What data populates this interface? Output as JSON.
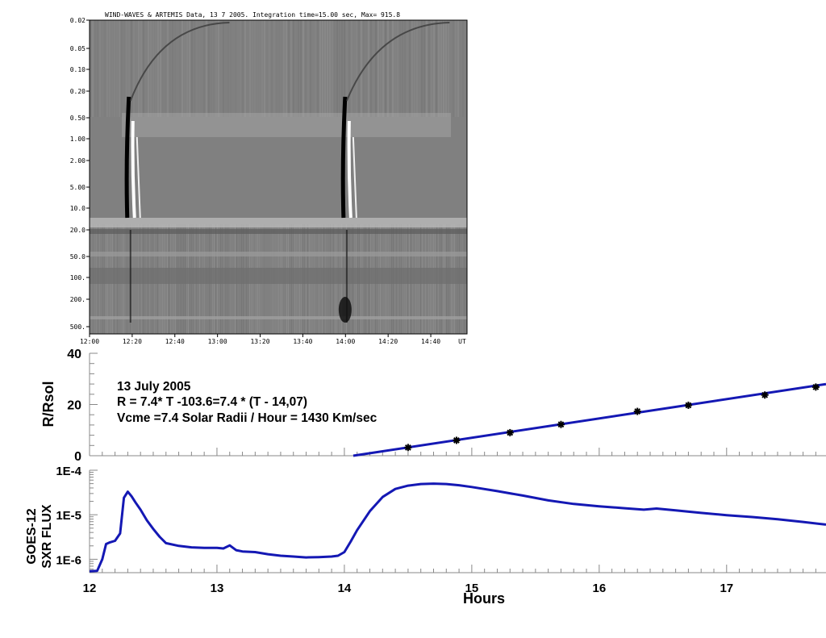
{
  "chart_data": [
    {
      "type": "heatmap",
      "title": "WIND-WAVES & ARTEMIS Data, 13  7 2005. Integration time=15.00 sec, Max= 915.8",
      "ytick_labels": [
        "0.02",
        "0.05",
        "0.10",
        "0.20",
        "0.50",
        "1.00",
        "2.00",
        "5.00",
        "10.0",
        "20.0",
        "50.0",
        "100.",
        "200.",
        "500."
      ],
      "xtick_labels": [
        "12:00",
        "12:20",
        "12:40",
        "13:00",
        "13:20",
        "13:40",
        "14:00",
        "14:20",
        "14:40",
        "UT"
      ],
      "x_range_hours": [
        12.0,
        14.95
      ],
      "bursts": [
        {
          "t_start": 12.32,
          "t_end": 12.4
        },
        {
          "t_start": 14.01,
          "t_end": 14.12
        }
      ],
      "colormap": "grayscale"
    },
    {
      "type": "scatter",
      "ylabel": "R/Rsol",
      "ylim": [
        0,
        40
      ],
      "yticks": [
        "0",
        "20",
        "40"
      ],
      "xlim": [
        12,
        17.78
      ],
      "annotations": [
        "13 July 2005",
        "R = 7.4* T -103.6=7.4 * (T - 14,07)",
        "Vcme =7.4 Solar Radii / Hour = 1430 Km/sec"
      ],
      "points": [
        {
          "x": 14.5,
          "y": 3.2
        },
        {
          "x": 14.88,
          "y": 6.0
        },
        {
          "x": 15.3,
          "y": 9.0
        },
        {
          "x": 15.7,
          "y": 12.2
        },
        {
          "x": 16.3,
          "y": 17.3
        },
        {
          "x": 16.7,
          "y": 19.7
        },
        {
          "x": 17.3,
          "y": 23.7
        },
        {
          "x": 17.7,
          "y": 26.8
        }
      ],
      "fit": {
        "slope": 7.4,
        "intercept": -103.6,
        "x_start": 14.07,
        "color": "#1418b4"
      }
    },
    {
      "type": "line",
      "ylabel": "GOES-12\nSXR FLUX",
      "ylabel_lines": [
        "GOES-12",
        "SXR FLUX"
      ],
      "yscale": "log",
      "ylim": [
        5e-07,
        0.0001
      ],
      "yticks": [
        "1E-4",
        "1E-5",
        "1E-6"
      ],
      "xlim": [
        12,
        17.78
      ],
      "xticks": [
        "12",
        "13",
        "14",
        "15",
        "16",
        "17"
      ],
      "xlabel": "Hours",
      "color": "#1418b4",
      "series": [
        {
          "x": [
            12.0,
            12.06,
            12.1,
            12.13,
            12.16,
            12.2,
            12.24,
            12.27,
            12.3,
            12.33,
            12.36,
            12.4,
            12.45,
            12.5,
            12.55,
            12.6,
            12.7,
            12.8,
            12.9,
            13.0,
            13.05,
            13.1,
            13.15,
            13.2,
            13.3,
            13.4,
            13.5,
            13.6,
            13.7,
            13.8,
            13.9,
            13.95,
            14.0,
            14.05,
            14.1,
            14.2,
            14.3,
            14.4,
            14.5,
            14.6,
            14.7,
            14.8,
            14.9,
            15.0,
            15.2,
            15.4,
            15.6,
            15.8,
            16.0,
            16.2,
            16.35,
            16.45,
            16.6,
            16.8,
            17.0,
            17.2,
            17.4,
            17.6,
            17.78
          ],
          "y": [
            5.4e-07,
            5.5e-07,
            1e-06,
            2.2e-06,
            2.4e-06,
            2.6e-06,
            3.8e-06,
            2.4e-05,
            3.3e-05,
            2.6e-05,
            1.9e-05,
            1.3e-05,
            7.5e-06,
            4.8e-06,
            3.2e-06,
            2.3e-06,
            2e-06,
            1.85e-06,
            1.8e-06,
            1.8e-06,
            1.75e-06,
            2.05e-06,
            1.6e-06,
            1.5e-06,
            1.45e-06,
            1.3e-06,
            1.2e-06,
            1.15e-06,
            1.1e-06,
            1.12e-06,
            1.15e-06,
            1.2e-06,
            1.45e-06,
            2.5e-06,
            4.5e-06,
            1.2e-05,
            2.5e-05,
            3.8e-05,
            4.5e-05,
            4.9e-05,
            5e-05,
            4.9e-05,
            4.6e-05,
            4.2e-05,
            3.4e-05,
            2.7e-05,
            2.1e-05,
            1.75e-05,
            1.55e-05,
            1.4e-05,
            1.3e-05,
            1.38e-05,
            1.25e-05,
            1.1e-05,
            9.8e-06,
            8.9e-06,
            7.9e-06,
            6.9e-06,
            6e-06
          ]
        }
      ]
    }
  ]
}
